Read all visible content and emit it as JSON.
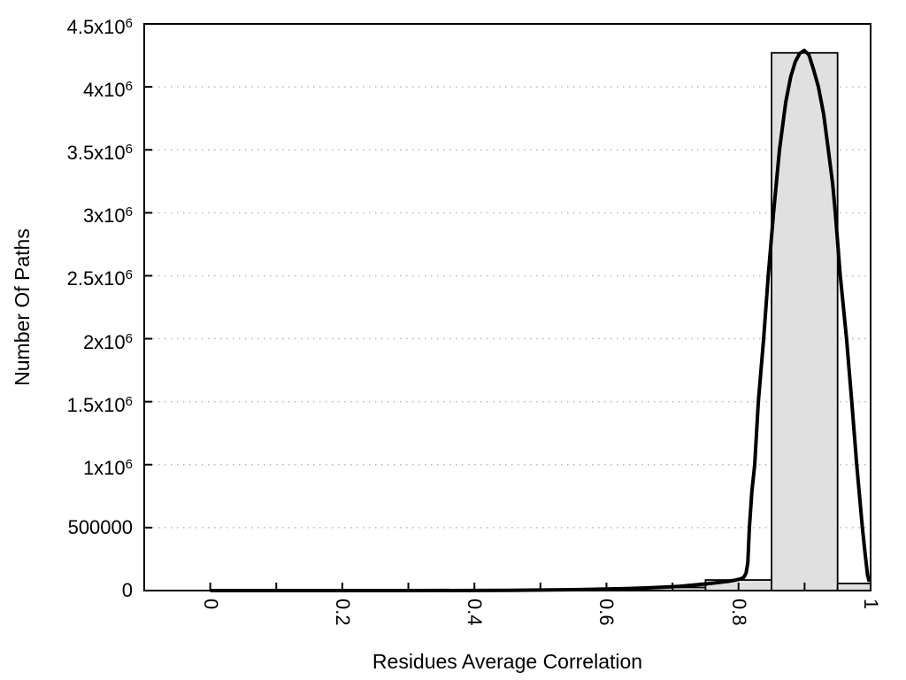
{
  "colors": {
    "background": "#ffffff",
    "axis": "#000000",
    "grid": "#b8b8b8",
    "bar_fill": "#e0e0e0",
    "bar_stroke": "#000000",
    "curve": "#000000"
  },
  "chart_data": {
    "type": "bar",
    "subtype": "histogram-with-smoothed-curve",
    "title": "",
    "xlabel": "Residues Average Correlation",
    "ylabel": "Number Of Paths",
    "xlim": [
      -0.1,
      1.0
    ],
    "ylim": [
      0,
      4500000
    ],
    "grid": "horizontal dotted lines at every y major tick",
    "legend_position": "none",
    "x_ticks": {
      "major": [
        0,
        0.2,
        0.4,
        0.6,
        0.8,
        1.0
      ],
      "labels": [
        "0",
        "0.2",
        "0.4",
        "0.6",
        "0.8",
        "1"
      ],
      "minor": [
        0.1,
        0.3,
        0.5,
        0.7,
        0.9
      ],
      "label_rotation_deg": 90
    },
    "y_ticks": [
      {
        "value": 0,
        "label": "0",
        "exp": ""
      },
      {
        "value": 500000,
        "label": "500000",
        "exp": ""
      },
      {
        "value": 1000000,
        "label": "1x10",
        "exp": "6"
      },
      {
        "value": 1500000,
        "label": "1.5x10",
        "exp": "6"
      },
      {
        "value": 2000000,
        "label": "2x10",
        "exp": "6"
      },
      {
        "value": 2500000,
        "label": "2.5x10",
        "exp": "6"
      },
      {
        "value": 3000000,
        "label": "3x10",
        "exp": "6"
      },
      {
        "value": 3500000,
        "label": "3.5x10",
        "exp": "6"
      },
      {
        "value": 4000000,
        "label": "4x10",
        "exp": "6"
      },
      {
        "value": 4500000,
        "label": "4.5x10",
        "exp": "6"
      }
    ],
    "bars": {
      "fill": "#e0e0e0",
      "stroke": "#000000",
      "bins": [
        {
          "x0": 0.65,
          "x1": 0.75,
          "count": 25000
        },
        {
          "x0": 0.75,
          "x1": 0.85,
          "count": 84000
        },
        {
          "x0": 0.85,
          "x1": 0.95,
          "count": 4270000
        },
        {
          "x0": 0.95,
          "x1": 1.0,
          "count": 56000
        }
      ]
    },
    "curve": {
      "name": "smoothed frequency curve",
      "color": "#000000",
      "stroke_width": 4,
      "peak": {
        "x": 0.9,
        "y": 4290000
      },
      "points": [
        [
          0.0,
          0
        ],
        [
          0.1,
          0
        ],
        [
          0.2,
          0
        ],
        [
          0.3,
          0
        ],
        [
          0.4,
          1000
        ],
        [
          0.45,
          2000
        ],
        [
          0.5,
          4000
        ],
        [
          0.55,
          7000
        ],
        [
          0.6,
          12000
        ],
        [
          0.63,
          16000
        ],
        [
          0.66,
          21000
        ],
        [
          0.69,
          28000
        ],
        [
          0.71,
          34000
        ],
        [
          0.73,
          43000
        ],
        [
          0.75,
          53000
        ],
        [
          0.77,
          64000
        ],
        [
          0.785,
          74000
        ],
        [
          0.795,
          83000
        ],
        [
          0.803,
          93000
        ],
        [
          0.808,
          105000
        ],
        [
          0.8115,
          140000
        ],
        [
          0.814,
          220000
        ],
        [
          0.8165,
          500000
        ],
        [
          0.82,
          780000
        ],
        [
          0.8245,
          1000000
        ],
        [
          0.83,
          1500000
        ],
        [
          0.838,
          2000000
        ],
        [
          0.845,
          2500000
        ],
        [
          0.853,
          3000000
        ],
        [
          0.862,
          3500000
        ],
        [
          0.8715,
          3880000
        ],
        [
          0.879,
          4080000
        ],
        [
          0.886,
          4200000
        ],
        [
          0.8925,
          4265000
        ],
        [
          0.8995,
          4290000
        ],
        [
          0.9065,
          4255000
        ],
        [
          0.9135,
          4140000
        ],
        [
          0.921,
          4000000
        ],
        [
          0.929,
          3780000
        ],
        [
          0.936,
          3500000
        ],
        [
          0.9425,
          3230000
        ],
        [
          0.9465,
          3000000
        ],
        [
          0.954,
          2500000
        ],
        [
          0.9635,
          2000000
        ],
        [
          0.9715,
          1500000
        ],
        [
          0.979,
          1000000
        ],
        [
          0.9875,
          500000
        ],
        [
          0.992,
          280000
        ],
        [
          0.9955,
          120000
        ],
        [
          0.998,
          70000
        ]
      ]
    }
  }
}
